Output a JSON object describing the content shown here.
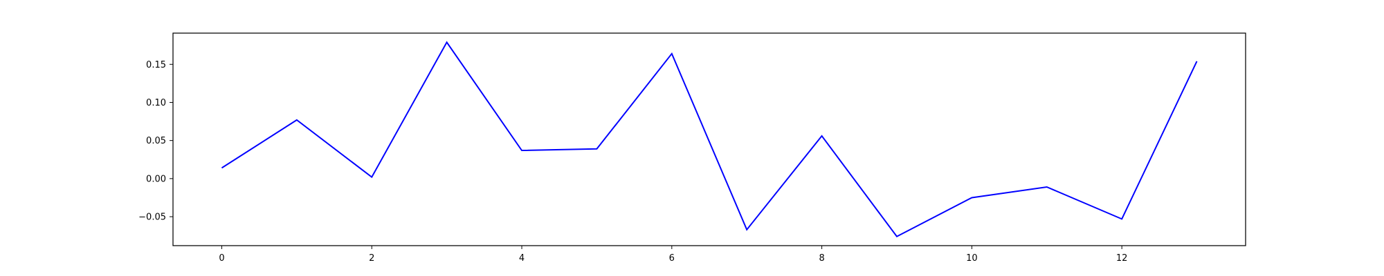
{
  "chart_data": {
    "type": "line",
    "title": "",
    "xlabel": "",
    "ylabel": "",
    "x": [
      0,
      1,
      2,
      3,
      4,
      5,
      6,
      7,
      8,
      9,
      10,
      11,
      12,
      13
    ],
    "series": [
      {
        "values": [
          0.014,
          0.077,
          0.002,
          0.179,
          0.037,
          0.039,
          0.164,
          -0.067,
          0.056,
          -0.076,
          -0.025,
          -0.011,
          -0.053,
          0.154
        ],
        "color": "#0000ff"
      }
    ],
    "xlim": [
      -0.65,
      13.65
    ],
    "ylim": [
      -0.088,
      0.191
    ],
    "xticks": [
      0,
      2,
      4,
      6,
      8,
      10,
      12
    ],
    "xtick_labels": [
      "0",
      "2",
      "4",
      "6",
      "8",
      "10",
      "12"
    ],
    "yticks": [
      -0.05,
      0.0,
      0.05,
      0.1,
      0.15
    ],
    "ytick_labels": [
      "−0.05",
      "0.00",
      "0.05",
      "0.10",
      "0.15"
    ],
    "grid": false,
    "legend": "none"
  }
}
